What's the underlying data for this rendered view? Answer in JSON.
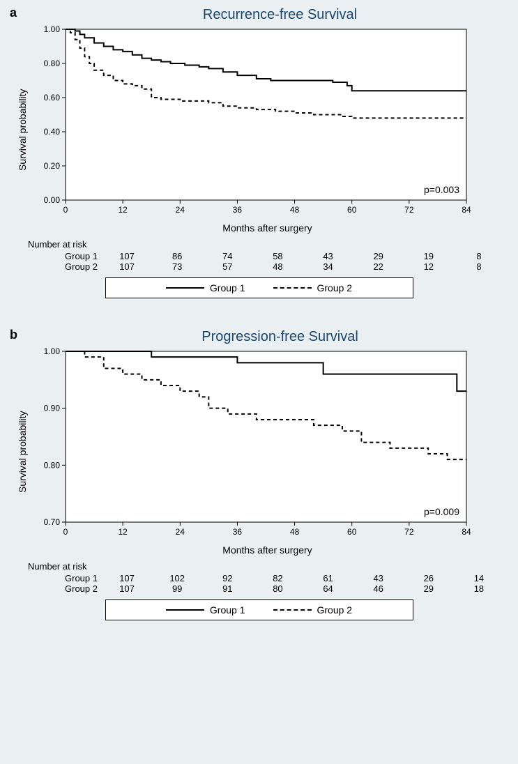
{
  "page_background": "#eaeff2",
  "plot_background": "#ffffff",
  "axis_color": "#000000",
  "text_color": "#000000",
  "title_color": "#1a476f",
  "title_fontsize": 20,
  "label_fontsize": 14,
  "tick_fontsize": 12,
  "line_color": "#000000",
  "line_width_solid": 2,
  "line_width_dashed": 2,
  "dash_pattern": "5,4",
  "panels": {
    "a": {
      "panel_label": "a",
      "title": "Recurrence-free Survival",
      "ylabel": "Survival probability",
      "xlabel": "Months after surgery",
      "xlim": [
        0,
        84
      ],
      "xticks": [
        0,
        12,
        24,
        36,
        48,
        60,
        72,
        84
      ],
      "ylim": [
        0.0,
        1.0
      ],
      "yticks": [
        0.0,
        0.2,
        0.4,
        0.6,
        0.8,
        1.0
      ],
      "ytick_labels": [
        "0.00",
        "0.20",
        "0.40",
        "0.60",
        "0.80",
        "1.00"
      ],
      "p_text": "p=0.003",
      "series": {
        "group1": {
          "style": "solid",
          "points": [
            [
              0,
              1.0
            ],
            [
              2,
              0.99
            ],
            [
              3,
              0.97
            ],
            [
              4,
              0.95
            ],
            [
              6,
              0.92
            ],
            [
              8,
              0.9
            ],
            [
              10,
              0.88
            ],
            [
              12,
              0.87
            ],
            [
              14,
              0.85
            ],
            [
              16,
              0.83
            ],
            [
              18,
              0.82
            ],
            [
              20,
              0.81
            ],
            [
              22,
              0.8
            ],
            [
              25,
              0.79
            ],
            [
              28,
              0.78
            ],
            [
              30,
              0.77
            ],
            [
              33,
              0.75
            ],
            [
              36,
              0.73
            ],
            [
              40,
              0.71
            ],
            [
              43,
              0.7
            ],
            [
              48,
              0.7
            ],
            [
              52,
              0.7
            ],
            [
              56,
              0.69
            ],
            [
              59,
              0.67
            ],
            [
              60,
              0.64
            ],
            [
              72,
              0.64
            ],
            [
              84,
              0.64
            ]
          ]
        },
        "group2": {
          "style": "dashed",
          "points": [
            [
              0,
              1.0
            ],
            [
              1,
              0.98
            ],
            [
              2,
              0.94
            ],
            [
              3,
              0.89
            ],
            [
              4,
              0.84
            ],
            [
              5,
              0.8
            ],
            [
              6,
              0.76
            ],
            [
              8,
              0.73
            ],
            [
              10,
              0.7
            ],
            [
              12,
              0.68
            ],
            [
              14,
              0.67
            ],
            [
              16,
              0.65
            ],
            [
              18,
              0.6
            ],
            [
              20,
              0.59
            ],
            [
              24,
              0.58
            ],
            [
              28,
              0.58
            ],
            [
              30,
              0.57
            ],
            [
              33,
              0.55
            ],
            [
              36,
              0.54
            ],
            [
              40,
              0.53
            ],
            [
              44,
              0.52
            ],
            [
              48,
              0.51
            ],
            [
              52,
              0.5
            ],
            [
              58,
              0.49
            ],
            [
              60,
              0.48
            ],
            [
              72,
              0.48
            ],
            [
              84,
              0.48
            ]
          ]
        }
      },
      "risk_title": "Number at risk",
      "risk": {
        "group1": {
          "label": "Group 1",
          "values": [
            107,
            86,
            74,
            58,
            43,
            29,
            19,
            8
          ]
        },
        "group2": {
          "label": "Group 2",
          "values": [
            107,
            73,
            57,
            48,
            34,
            22,
            12,
            8
          ]
        }
      },
      "legend": {
        "group1": "Group 1",
        "group2": "Group 2"
      }
    },
    "b": {
      "panel_label": "b",
      "title": "Progression-free Survival",
      "ylabel": "Survival probability",
      "xlabel": "Months after surgery",
      "xlim": [
        0,
        84
      ],
      "xticks": [
        0,
        12,
        24,
        36,
        48,
        60,
        72,
        84
      ],
      "ylim": [
        0.7,
        1.0
      ],
      "yticks": [
        0.7,
        0.8,
        0.9,
        1.0
      ],
      "ytick_labels": [
        "0.70",
        "0.80",
        "0.90",
        "1.00"
      ],
      "p_text": "p=0.009",
      "series": {
        "group1": {
          "style": "solid",
          "points": [
            [
              0,
              1.0
            ],
            [
              12,
              1.0
            ],
            [
              18,
              0.99
            ],
            [
              24,
              0.99
            ],
            [
              30,
              0.99
            ],
            [
              36,
              0.98
            ],
            [
              42,
              0.98
            ],
            [
              48,
              0.98
            ],
            [
              54,
              0.96
            ],
            [
              60,
              0.96
            ],
            [
              70,
              0.96
            ],
            [
              80,
              0.96
            ],
            [
              82,
              0.93
            ],
            [
              84,
              0.93
            ]
          ]
        },
        "group2": {
          "style": "dashed",
          "points": [
            [
              0,
              1.0
            ],
            [
              4,
              0.99
            ],
            [
              8,
              0.97
            ],
            [
              12,
              0.96
            ],
            [
              16,
              0.95
            ],
            [
              20,
              0.94
            ],
            [
              24,
              0.93
            ],
            [
              28,
              0.92
            ],
            [
              30,
              0.9
            ],
            [
              34,
              0.89
            ],
            [
              40,
              0.88
            ],
            [
              48,
              0.88
            ],
            [
              52,
              0.87
            ],
            [
              58,
              0.86
            ],
            [
              62,
              0.84
            ],
            [
              68,
              0.83
            ],
            [
              72,
              0.83
            ],
            [
              76,
              0.82
            ],
            [
              80,
              0.81
            ],
            [
              84,
              0.81
            ]
          ]
        }
      },
      "risk_title": "Number at risk",
      "risk": {
        "group1": {
          "label": "Group 1",
          "values": [
            107,
            102,
            92,
            82,
            61,
            43,
            26,
            14
          ]
        },
        "group2": {
          "label": "Group 2",
          "values": [
            107,
            99,
            91,
            80,
            64,
            46,
            29,
            18
          ]
        }
      },
      "legend": {
        "group1": "Group 1",
        "group2": "Group 2"
      }
    }
  }
}
